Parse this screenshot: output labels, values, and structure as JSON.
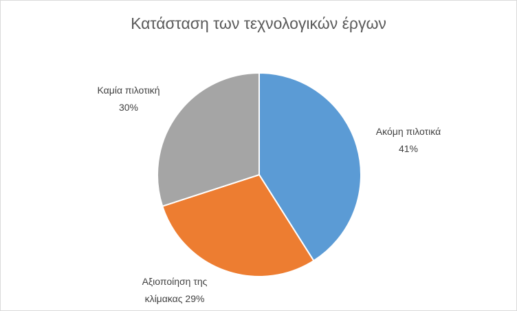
{
  "chart_data": {
    "type": "pie",
    "title": "Κατάσταση των τεχνολογικών έργων",
    "categories": [
      "Ακόμη πιλοτικά",
      "Αξιοποίηση της κλίμακας",
      "Καμία πιλοτική"
    ],
    "values": [
      41,
      29,
      30
    ],
    "value_labels": [
      "41%",
      "29%",
      "30%"
    ],
    "colors": [
      "#5b9bd5",
      "#ed7d31",
      "#a5a5a5"
    ]
  }
}
